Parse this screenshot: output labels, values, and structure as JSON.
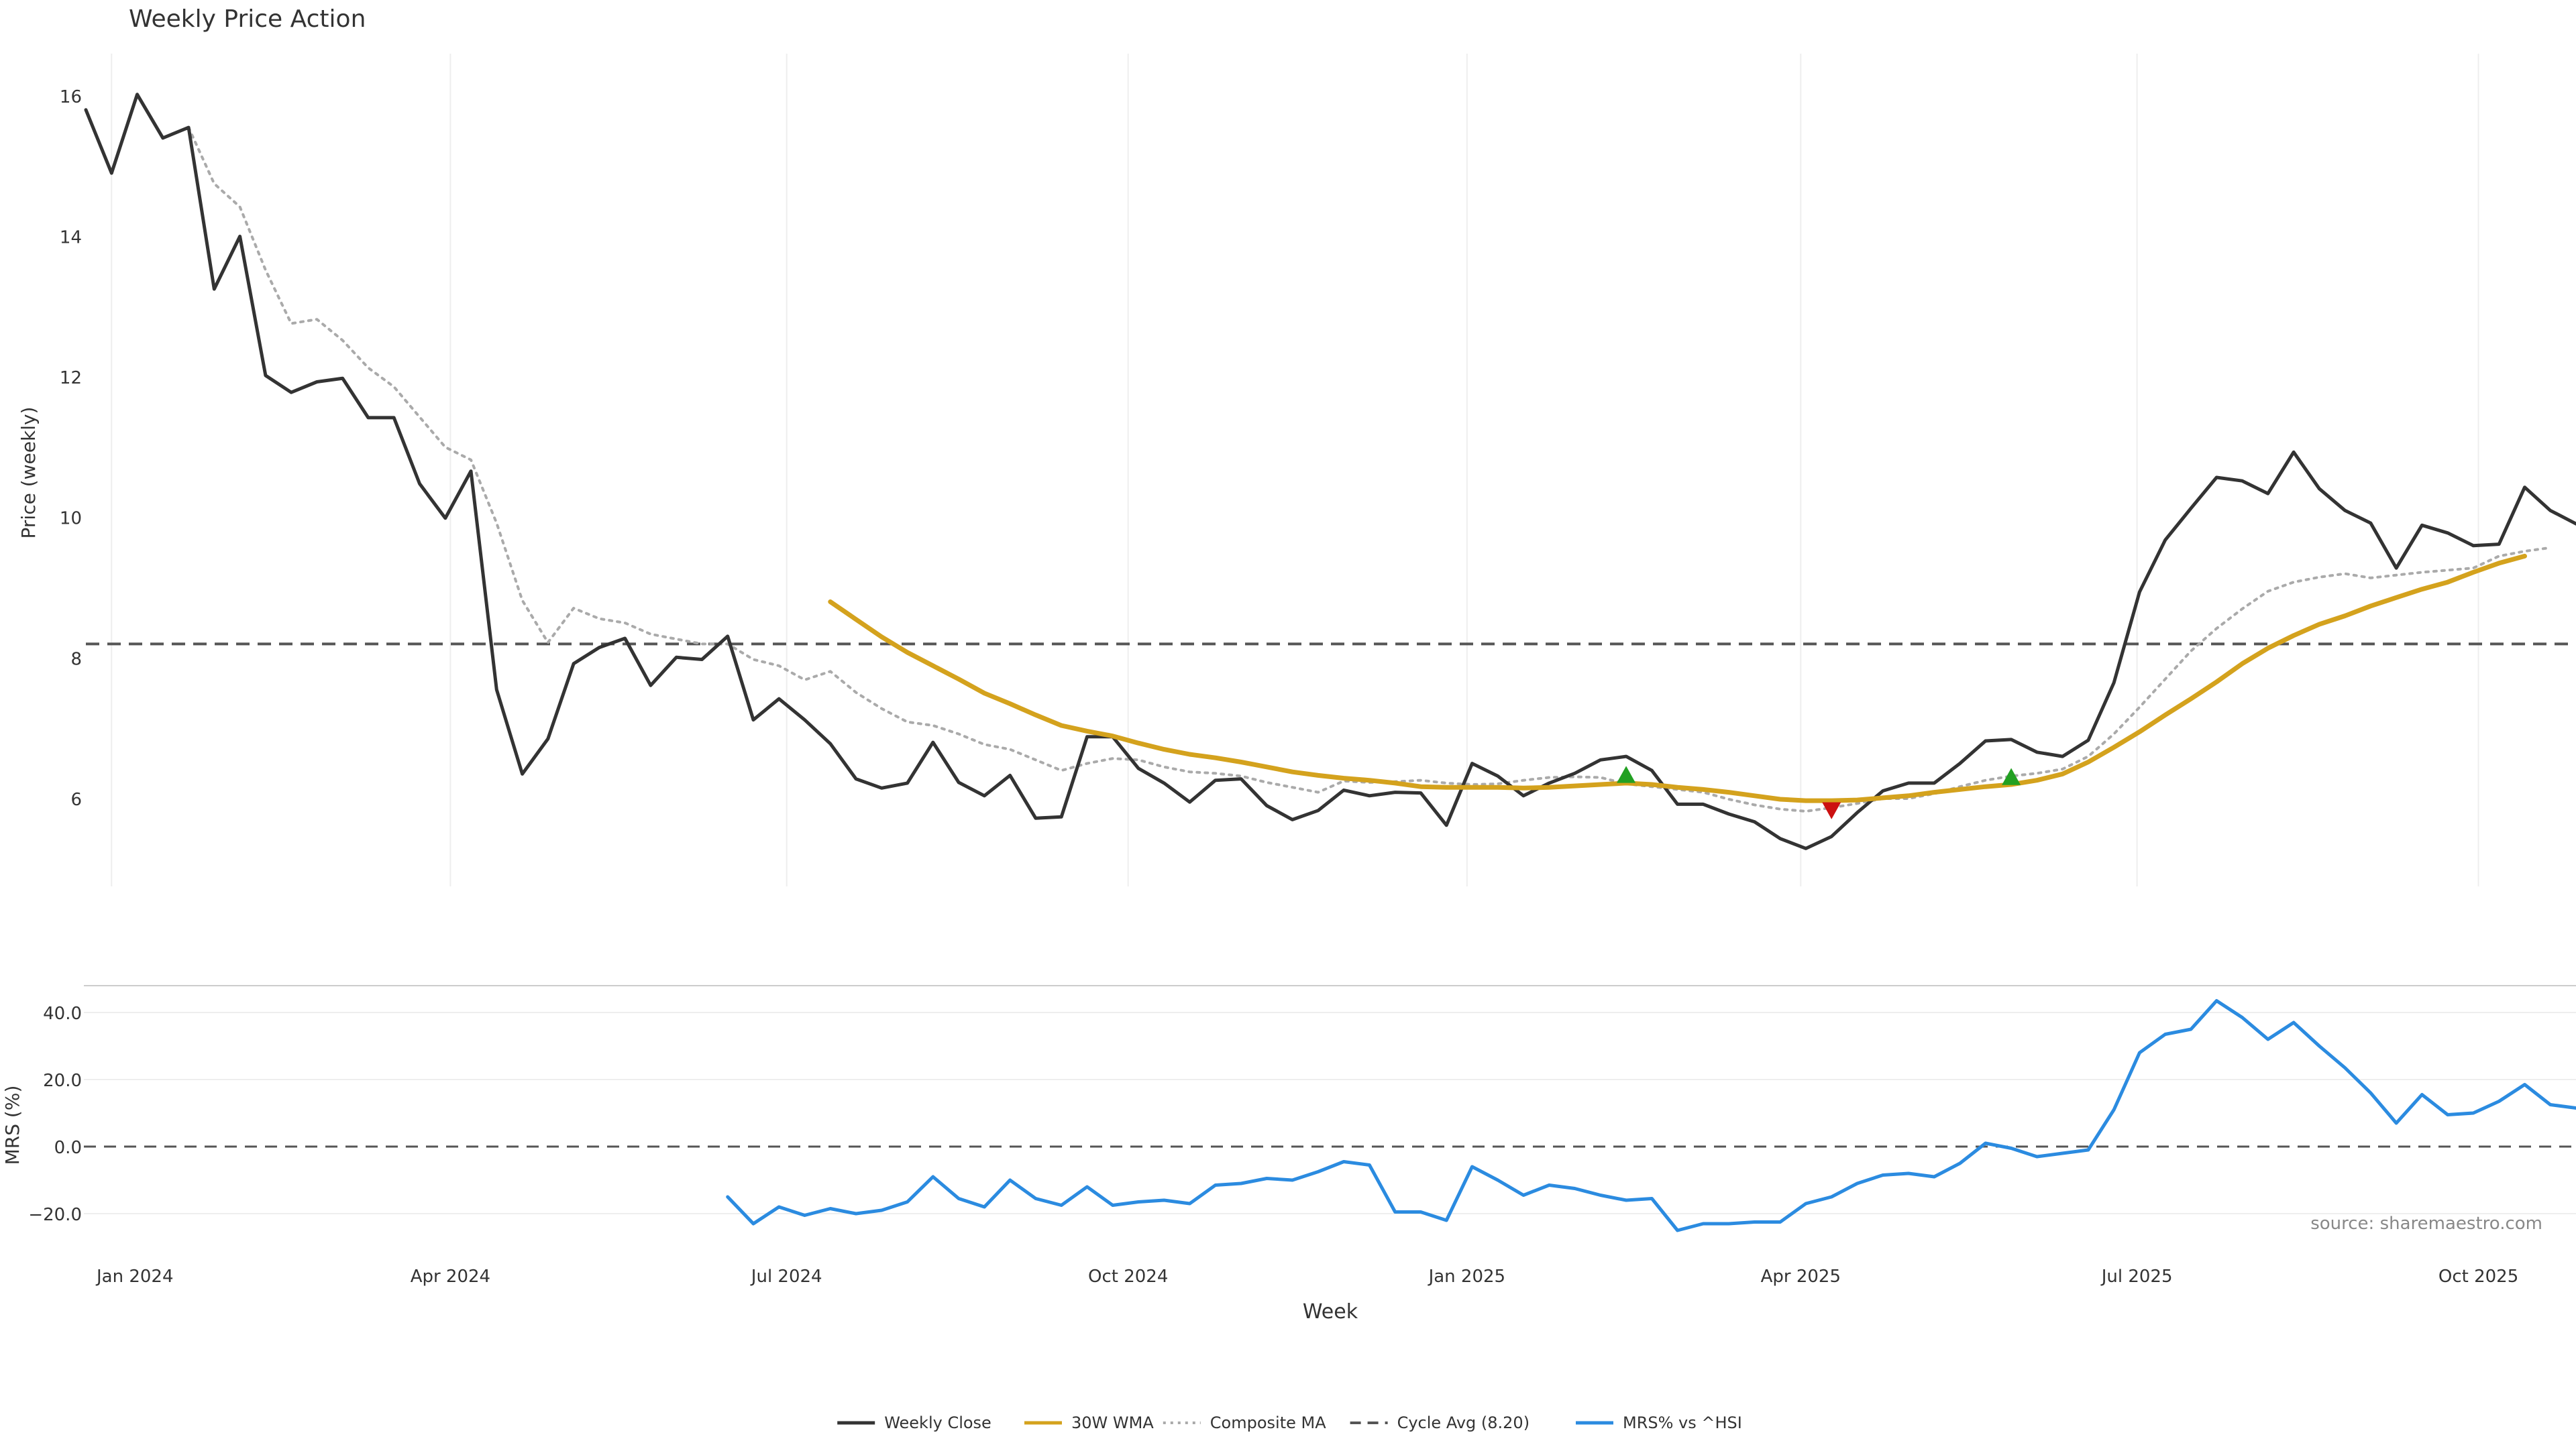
{
  "chart_data": [
    {
      "type": "line",
      "title": "Weekly Price Action",
      "ylabel": "Price (weekly)",
      "xlabel": "Week",
      "ylim": [
        4.75,
        16.6
      ],
      "yticks": [
        6,
        8,
        10,
        12,
        14,
        16
      ],
      "grid": "vertical",
      "reference_line": {
        "label": "Cycle Avg (8.20)",
        "value": 8.2
      },
      "series": [
        {
          "name": "Weekly Close",
          "color": "#333333",
          "style": "solid",
          "start": 0,
          "values": [
            15.8,
            14.9,
            16.02,
            15.4,
            15.55,
            13.25,
            14.0,
            12.02,
            11.78,
            11.93,
            11.98,
            11.42,
            11.42,
            10.48,
            9.99,
            10.66,
            7.55,
            6.35,
            6.85,
            7.92,
            8.15,
            8.28,
            7.61,
            8.01,
            7.98,
            8.31,
            7.12,
            7.42,
            7.12,
            6.78,
            6.28,
            6.15,
            6.22,
            6.8,
            6.23,
            6.04,
            6.33,
            5.72,
            5.74,
            6.88,
            6.88,
            6.43,
            6.22,
            5.95,
            6.26,
            6.28,
            5.9,
            5.7,
            5.83,
            6.12,
            6.04,
            6.09,
            6.08,
            5.62,
            6.5,
            6.32,
            6.04,
            6.22,
            6.36,
            6.55,
            6.6,
            6.4,
            5.92,
            5.92,
            5.78,
            5.67,
            5.43,
            5.29,
            5.46,
            5.8,
            6.11,
            6.22,
            6.22,
            6.5,
            6.82,
            6.84,
            6.66,
            6.6,
            6.83,
            7.65,
            8.94,
            9.68,
            10.13,
            10.57,
            10.52,
            10.34,
            10.93,
            10.41,
            10.1,
            9.92,
            9.28,
            9.89,
            9.78,
            9.6,
            9.62,
            10.43,
            10.1,
            9.91
          ]
        },
        {
          "name": "30W WMA",
          "color": "#d4a21d",
          "style": "solid",
          "start": 29,
          "values": [
            8.8,
            8.55,
            8.3,
            8.08,
            7.89,
            7.7,
            7.5,
            7.35,
            7.19,
            7.04,
            6.96,
            6.89,
            6.79,
            6.7,
            6.63,
            6.58,
            6.52,
            6.45,
            6.38,
            6.33,
            6.29,
            6.26,
            6.22,
            6.17,
            6.16,
            6.16,
            6.16,
            6.15,
            6.16,
            6.18,
            6.2,
            6.22,
            6.2,
            6.16,
            6.13,
            6.09,
            6.04,
            5.99,
            5.97,
            5.97,
            5.98,
            6.01,
            6.04,
            6.09,
            6.13,
            6.17,
            6.2,
            6.26,
            6.35,
            6.52,
            6.73,
            6.95,
            7.19,
            7.42,
            7.66,
            7.92,
            8.14,
            8.32,
            8.48,
            8.6,
            8.74,
            8.86,
            8.98,
            9.08,
            9.22,
            9.35,
            9.45
          ]
        },
        {
          "name": "Composite MA",
          "color": "#aaaaaa",
          "style": "dotted",
          "start": 4,
          "values": [
            15.55,
            14.75,
            14.42,
            13.52,
            12.76,
            12.82,
            12.52,
            12.13,
            11.86,
            11.43,
            11.0,
            10.82,
            9.92,
            8.82,
            8.22,
            8.71,
            8.56,
            8.5,
            8.34,
            8.27,
            8.2,
            8.2,
            7.98,
            7.89,
            7.69,
            7.81,
            7.51,
            7.28,
            7.09,
            7.04,
            6.92,
            6.77,
            6.7,
            6.55,
            6.4,
            6.5,
            6.57,
            6.55,
            6.45,
            6.38,
            6.36,
            6.32,
            6.23,
            6.16,
            6.09,
            6.25,
            6.23,
            6.24,
            6.26,
            6.22,
            6.2,
            6.21,
            6.26,
            6.3,
            6.31,
            6.3,
            6.21,
            6.17,
            6.13,
            6.09,
            5.99,
            5.91,
            5.85,
            5.82,
            5.87,
            5.93,
            6.0,
            6.0,
            6.07,
            6.17,
            6.26,
            6.32,
            6.36,
            6.42,
            6.6,
            6.92,
            7.3,
            7.7,
            8.1,
            8.42,
            8.7,
            8.95,
            9.08,
            9.15,
            9.2,
            9.14,
            9.18,
            9.22,
            9.25,
            9.28,
            9.45,
            9.52,
            9.57
          ]
        }
      ],
      "markers": [
        {
          "type": "buy",
          "index": 60,
          "value": 6.33,
          "color": "#22a022"
        },
        {
          "type": "sell",
          "index": 68,
          "value": 5.84,
          "color": "#cc1111"
        },
        {
          "type": "buy",
          "index": 75,
          "value": 6.3,
          "color": "#22a022"
        }
      ]
    },
    {
      "type": "line",
      "ylabel": "MRS (%)",
      "ylim": [
        -27,
        48
      ],
      "yticks": [
        -20.0,
        0.0,
        20.0,
        40.0
      ],
      "tick_labels": [
        "−20.0",
        "0.0",
        "20.0",
        "40.0"
      ],
      "grid": "horizontal",
      "reference_line": {
        "value": 0
      },
      "series": [
        {
          "name": "MRS% vs ^HSI",
          "color": "#2b8be0",
          "style": "solid",
          "start": 25,
          "values": [
            -15,
            -23,
            -18,
            -20.5,
            -18.5,
            -20,
            -19,
            -16.5,
            -9,
            -15.5,
            -18,
            -10,
            -15.5,
            -17.5,
            -12,
            -17.5,
            -16.5,
            -16,
            -17,
            -11.5,
            -11,
            -9.5,
            -10,
            -7.5,
            -4.5,
            -5.5,
            -19.5,
            -19.5,
            -22,
            -6,
            -10,
            -14.5,
            -11.5,
            -12.5,
            -14.5,
            -16,
            -15.5,
            -25,
            -23,
            -23,
            -22.5,
            -22.5,
            -17,
            -15,
            -11,
            -8.5,
            -8,
            -9,
            -5,
            1,
            -0.5,
            -3,
            -2,
            -1,
            11,
            28,
            33.5,
            35,
            43.5,
            38.5,
            32,
            37,
            30,
            23.5,
            16,
            7,
            15.5,
            9.5,
            10,
            13.5,
            18.5,
            12.5,
            11.5
          ]
        }
      ]
    }
  ],
  "axis_x": {
    "start_week": 0,
    "end_week": 97,
    "week0_tick_offset": 1,
    "ticks": [
      {
        "label": "Jan 2024",
        "week": 1
      },
      {
        "label": "Apr 2024",
        "week": 14.2
      },
      {
        "label": "Jul 2024",
        "week": 27.3
      },
      {
        "label": "Oct 2024",
        "week": 40.6
      },
      {
        "label": "Jan 2025",
        "week": 53.8
      },
      {
        "label": "Apr 2025",
        "week": 66.8
      },
      {
        "label": "Jul 2025",
        "week": 79.9
      },
      {
        "label": "Oct 2025",
        "week": 93.2
      }
    ]
  },
  "legend": {
    "placement": "bottom-center",
    "items": [
      {
        "label": "Weekly Close",
        "color": "#333333",
        "style": "solid"
      },
      {
        "label": "30W WMA",
        "color": "#d4a21d",
        "style": "solid"
      },
      {
        "label": "Composite MA",
        "color": "#aaaaaa",
        "style": "dotted"
      },
      {
        "label": "Cycle Avg (8.20)",
        "color": "#555555",
        "style": "dashed"
      },
      {
        "label": "MRS% vs ^HSI",
        "color": "#2b8be0",
        "style": "solid"
      }
    ]
  },
  "source_note": "source: sharemaestro.com"
}
